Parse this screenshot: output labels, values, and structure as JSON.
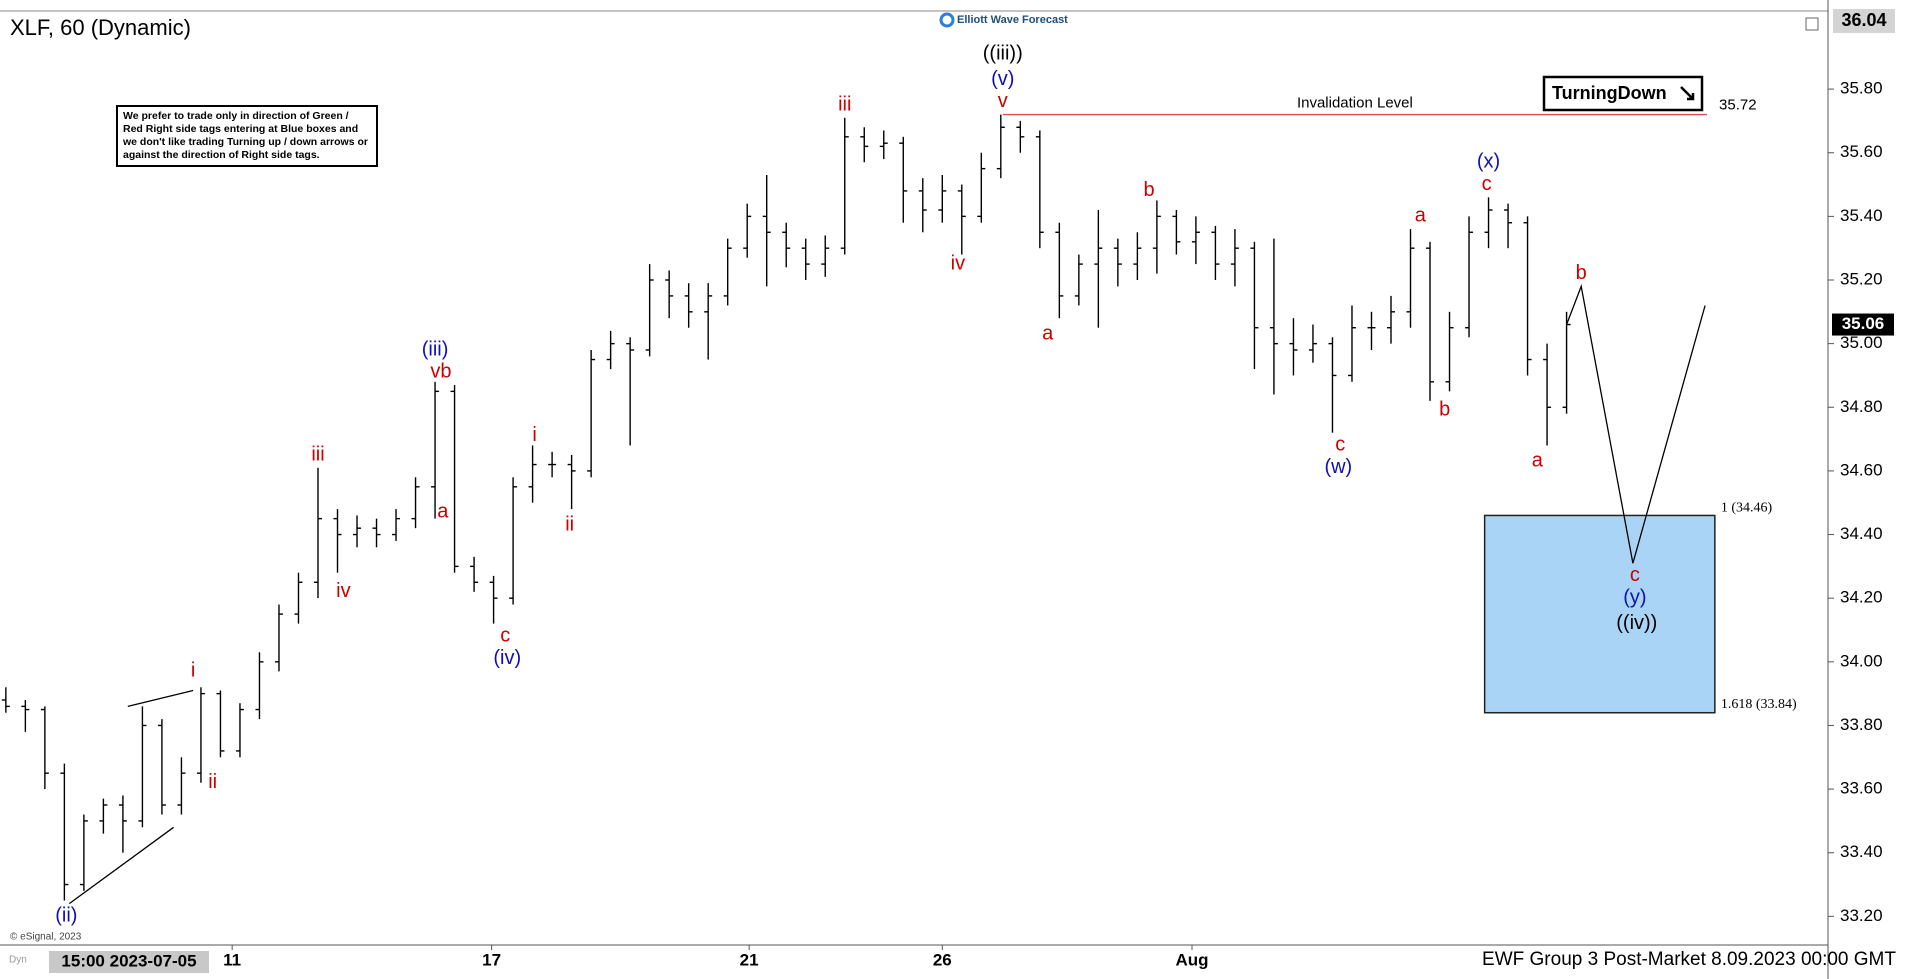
{
  "chart_data": {
    "type": "ohlc",
    "title": "XLF, 60 (Dynamic)",
    "x": [
      0,
      1,
      2,
      3,
      4,
      5,
      6,
      7,
      8,
      9,
      10,
      11,
      12,
      13,
      14,
      15,
      16,
      17,
      18,
      19,
      20,
      21,
      22,
      23,
      24,
      25,
      26,
      27,
      28,
      29,
      30,
      31,
      32,
      33,
      34,
      35,
      36,
      37,
      38,
      39,
      40,
      41,
      42,
      43,
      44,
      45,
      46,
      47,
      48,
      49,
      50,
      51,
      52,
      53,
      54,
      55,
      56,
      57,
      58,
      59,
      60,
      61,
      62,
      63,
      64,
      65,
      66,
      67,
      68,
      69,
      70,
      71,
      72,
      73,
      74,
      75,
      76,
      77,
      78,
      79,
      80
    ],
    "open": [
      33.88,
      33.86,
      33.85,
      33.65,
      33.3,
      33.5,
      33.55,
      33.5,
      33.8,
      33.55,
      33.65,
      33.9,
      33.72,
      33.85,
      34.0,
      34.15,
      34.25,
      34.45,
      34.4,
      34.42,
      34.4,
      34.45,
      34.55,
      34.85,
      34.3,
      34.25,
      34.2,
      34.55,
      34.62,
      34.62,
      34.6,
      34.95,
      35.0,
      34.98,
      35.2,
      35.15,
      35.1,
      35.15,
      35.3,
      35.4,
      35.35,
      35.3,
      35.25,
      35.3,
      35.65,
      35.62,
      35.63,
      35.48,
      35.42,
      35.48,
      35.4,
      35.55,
      35.68,
      35.65,
      35.35,
      35.15,
      35.25,
      35.3,
      35.25,
      35.3,
      35.4,
      35.32,
      35.35,
      35.25,
      35.3,
      35.05,
      35.0,
      34.98,
      35.0,
      34.9,
      35.05,
      35.05,
      35.1,
      35.3,
      34.88,
      35.05,
      35.35,
      35.42,
      35.38,
      34.95,
      34.8
    ],
    "high": [
      33.92,
      33.88,
      33.86,
      33.68,
      33.52,
      33.57,
      33.58,
      33.86,
      33.82,
      33.7,
      33.92,
      33.91,
      33.87,
      34.03,
      34.18,
      34.28,
      34.61,
      34.48,
      34.46,
      34.45,
      34.48,
      34.58,
      34.88,
      34.87,
      34.33,
      34.27,
      34.58,
      34.68,
      34.66,
      34.65,
      34.98,
      35.04,
      35.02,
      35.25,
      35.23,
      35.19,
      35.19,
      35.33,
      35.44,
      35.53,
      35.38,
      35.33,
      35.34,
      35.71,
      35.68,
      35.67,
      35.65,
      35.52,
      35.53,
      35.5,
      35.6,
      35.72,
      35.7,
      35.67,
      35.38,
      35.28,
      35.42,
      35.33,
      35.35,
      35.45,
      35.42,
      35.4,
      35.37,
      35.36,
      35.32,
      35.33,
      35.08,
      35.06,
      35.02,
      35.12,
      35.1,
      35.15,
      35.36,
      35.32,
      35.1,
      35.4,
      35.46,
      35.44,
      35.4,
      35.0,
      35.1
    ],
    "low": [
      33.84,
      33.78,
      33.6,
      33.25,
      33.28,
      33.46,
      33.4,
      33.48,
      33.52,
      33.52,
      33.62,
      33.7,
      33.7,
      33.82,
      33.97,
      34.12,
      34.2,
      34.28,
      34.36,
      34.36,
      34.38,
      34.42,
      34.45,
      34.28,
      34.22,
      34.12,
      34.18,
      34.5,
      34.58,
      34.48,
      34.58,
      34.92,
      34.68,
      34.96,
      35.08,
      35.05,
      34.95,
      35.12,
      35.27,
      35.18,
      35.24,
      35.2,
      35.21,
      35.28,
      35.57,
      35.58,
      35.38,
      35.35,
      35.38,
      35.28,
      35.38,
      35.52,
      35.6,
      35.3,
      35.08,
      35.12,
      35.05,
      35.18,
      35.2,
      35.22,
      35.28,
      35.25,
      35.2,
      35.18,
      34.92,
      34.84,
      34.9,
      34.94,
      34.72,
      34.88,
      34.98,
      35.0,
      35.05,
      34.82,
      34.85,
      35.02,
      35.3,
      35.3,
      34.9,
      34.68,
      34.78
    ],
    "close": [
      33.86,
      33.85,
      33.65,
      33.3,
      33.5,
      33.55,
      33.5,
      33.8,
      33.55,
      33.65,
      33.9,
      33.72,
      33.85,
      34.0,
      34.15,
      34.25,
      34.45,
      34.4,
      34.42,
      34.4,
      34.45,
      34.55,
      34.85,
      34.3,
      34.25,
      34.2,
      34.55,
      34.62,
      34.62,
      34.6,
      34.95,
      35.0,
      34.98,
      35.2,
      35.15,
      35.1,
      35.15,
      35.3,
      35.4,
      35.35,
      35.3,
      35.25,
      35.3,
      35.65,
      35.62,
      35.63,
      35.48,
      35.42,
      35.48,
      35.4,
      35.55,
      35.68,
      35.65,
      35.35,
      35.15,
      35.25,
      35.3,
      35.25,
      35.3,
      35.4,
      35.32,
      35.35,
      35.25,
      35.3,
      35.05,
      35.0,
      34.98,
      35.0,
      34.9,
      35.05,
      35.05,
      35.1,
      35.3,
      34.88,
      35.05,
      35.35,
      35.42,
      35.38,
      34.95,
      34.8,
      35.06
    ],
    "color": "#000000",
    "xlim": [
      -0.3,
      93.4
    ],
    "ylim": [
      33.11,
      36.08
    ],
    "grid": false,
    "xticks": [
      {
        "value": 11.6,
        "label": "11"
      },
      {
        "value": 24.9,
        "label": "17"
      },
      {
        "value": 38.1,
        "label": "21"
      },
      {
        "value": 48,
        "label": "26"
      },
      {
        "value": 60.8,
        "label": "Aug"
      }
    ],
    "yticks": [
      {
        "value": 33.2,
        "label": "33.20"
      },
      {
        "value": 33.4,
        "label": "33.40"
      },
      {
        "value": 33.6,
        "label": "33.60"
      },
      {
        "value": 33.8,
        "label": "33.80"
      },
      {
        "value": 34.0,
        "label": "34.00"
      },
      {
        "value": 34.2,
        "label": "34.20"
      },
      {
        "value": 34.4,
        "label": "34.40"
      },
      {
        "value": 34.6,
        "label": "34.60"
      },
      {
        "value": 34.8,
        "label": "34.80"
      },
      {
        "value": 35.0,
        "label": "35.00"
      },
      {
        "value": 35.2,
        "label": "35.20"
      },
      {
        "value": 35.4,
        "label": "35.40"
      },
      {
        "value": 35.6,
        "label": "35.60"
      },
      {
        "value": 35.8,
        "label": "35.80"
      }
    ],
    "top_price": 36.04,
    "start_label": "15:00 2023-07-05",
    "annotations": [
      {
        "text": "(ii)",
        "color": "#1010b0",
        "x": 3.1,
        "y": 33.2
      },
      {
        "text": "i",
        "color": "#cc0000",
        "x": 9.6,
        "y": 33.97
      },
      {
        "text": "ii",
        "color": "#cc0000",
        "x": 10.6,
        "y": 33.62
      },
      {
        "text": "iii",
        "color": "#cc0000",
        "x": 16,
        "y": 34.65
      },
      {
        "text": "iv",
        "color": "#cc0000",
        "x": 17.3,
        "y": 34.22
      },
      {
        "text": "(iii)",
        "color": "#1010b0",
        "x": 22,
        "y": 34.98
      },
      {
        "text": "vb",
        "color": "#cc0000",
        "x": 22.3,
        "y": 34.91
      },
      {
        "text": "a",
        "color": "#cc0000",
        "x": 22.4,
        "y": 34.47
      },
      {
        "text": "c",
        "color": "#cc0000",
        "x": 25.6,
        "y": 34.08
      },
      {
        "text": "(iv)",
        "color": "#1010b0",
        "x": 25.7,
        "y": 34.01
      },
      {
        "text": "i",
        "color": "#cc0000",
        "x": 27.1,
        "y": 34.71
      },
      {
        "text": "ii",
        "color": "#cc0000",
        "x": 28.9,
        "y": 34.43
      },
      {
        "text": "iii",
        "color": "#cc0000",
        "x": 43,
        "y": 35.75
      },
      {
        "text": "iv",
        "color": "#cc0000",
        "x": 48.8,
        "y": 35.25
      },
      {
        "text": "v",
        "color": "#cc0000",
        "x": 51.1,
        "y": 35.76
      },
      {
        "text": "(v)",
        "color": "#1010b0",
        "x": 51.1,
        "y": 35.83
      },
      {
        "text": "((iii))",
        "color": "#000000",
        "x": 51.1,
        "y": 35.91
      },
      {
        "text": "a",
        "color": "#cc0000",
        "x": 53.4,
        "y": 35.03
      },
      {
        "text": "b",
        "color": "#cc0000",
        "x": 58.6,
        "y": 35.48
      },
      {
        "text": "c",
        "color": "#cc0000",
        "x": 68.4,
        "y": 34.68
      },
      {
        "text": "(w)",
        "color": "#1010b0",
        "x": 68.3,
        "y": 34.61
      },
      {
        "text": "a",
        "color": "#cc0000",
        "x": 72.5,
        "y": 35.4
      },
      {
        "text": "b",
        "color": "#cc0000",
        "x": 73.75,
        "y": 34.79
      },
      {
        "text": "c",
        "color": "#cc0000",
        "x": 75.9,
        "y": 35.5
      },
      {
        "text": "(x)",
        "color": "#1010b0",
        "x": 76,
        "y": 35.57
      },
      {
        "text": "a",
        "color": "#cc0000",
        "x": 78.5,
        "y": 34.63
      },
      {
        "text": "b",
        "color": "#cc0000",
        "x": 80.75,
        "y": 35.22
      },
      {
        "text": "c",
        "color": "#cc0000",
        "x": 83.5,
        "y": 34.27
      },
      {
        "text": "(y)",
        "color": "#1010b0",
        "x": 83.5,
        "y": 34.2
      },
      {
        "text": "((iv))",
        "color": "#000000",
        "x": 83.6,
        "y": 34.12
      }
    ],
    "invalidation": {
      "label": "Invalidation Level",
      "value": 35.72,
      "x": [
        51.1,
        87.2
      ],
      "color": "#e05050"
    },
    "target_box": {
      "x": [
        75.8,
        87.6
      ],
      "top": 34.46,
      "bottom": 33.84,
      "top_label": "1 (34.46)",
      "bottom_label": "1.618 (33.84)",
      "color": "#a9d4f5"
    },
    "projection": {
      "x": [
        80,
        80.75,
        83.4,
        87.1
      ],
      "y": [
        35.06,
        35.18,
        34.31,
        35.12
      ]
    },
    "trendlines": [
      {
        "x": [
          6.25,
          9.6
        ],
        "y": [
          33.86,
          33.91
        ]
      },
      {
        "x": [
          3.25,
          8.6
        ],
        "y": [
          33.24,
          33.48
        ]
      }
    ],
    "note": "We prefer to trade only in direction of Green / Red Right side tags entering at Blue boxes and we don't like trading Turning up / down arrows or against the direction of Right side tags.",
    "badge": "TurningDown",
    "logo": "Elliott Wave Forecast",
    "footer": "EWF Group 3 Post-Market 8.09.2023 00:00 GMT",
    "copyright": "© eSignal, 2023",
    "dyn": "Dyn"
  }
}
